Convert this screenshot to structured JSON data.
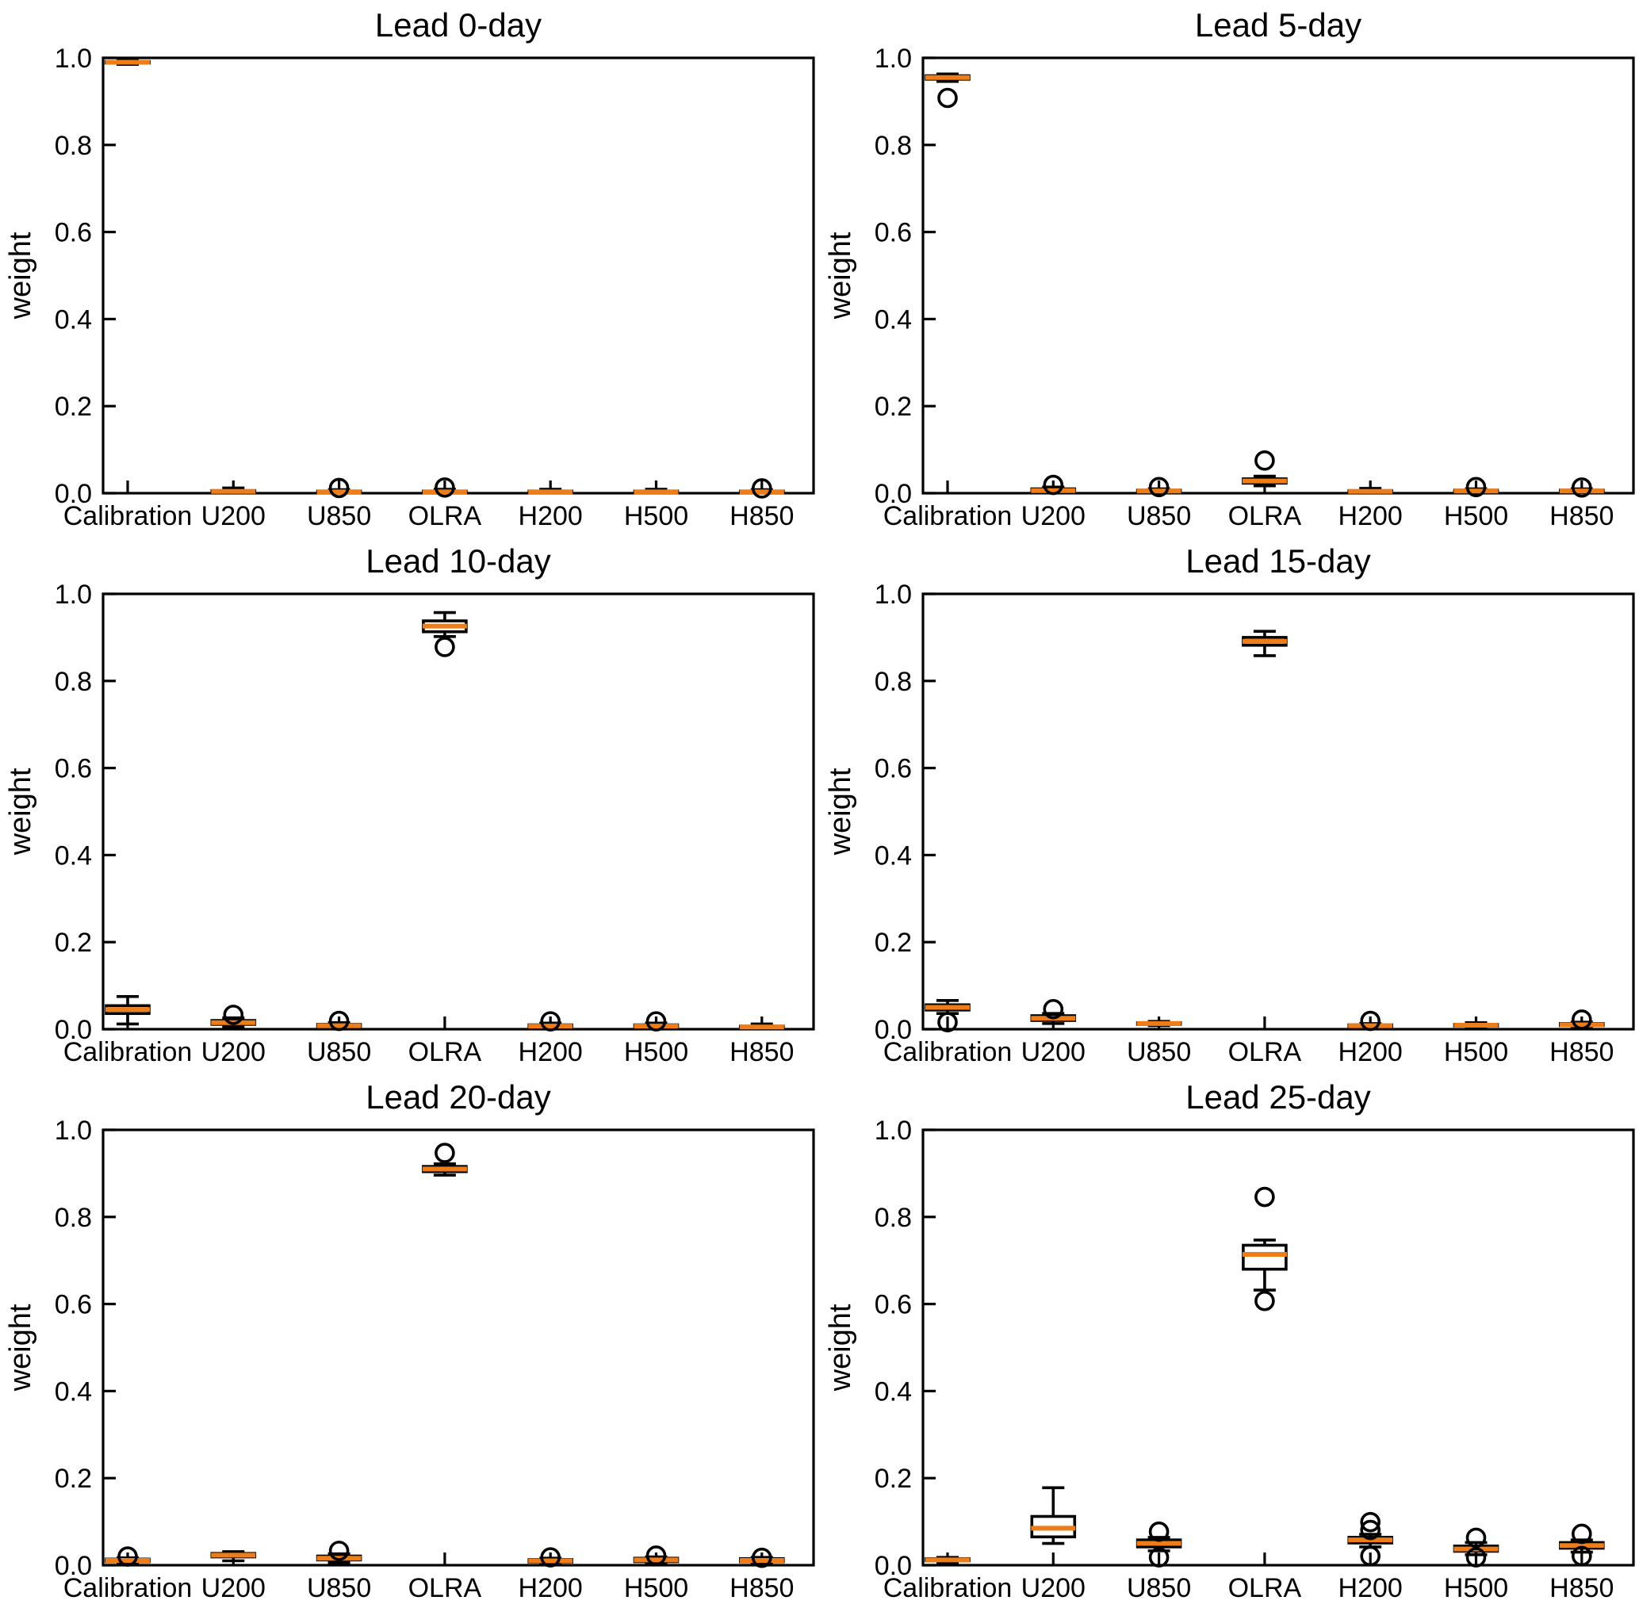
{
  "figure": {
    "background": "#ffffff",
    "axis_color": "#000000",
    "median_color": "#ee7d18",
    "ylabel": "weight",
    "categories": [
      "Calibration",
      "U200",
      "U850",
      "OLRA",
      "H200",
      "H500",
      "H850"
    ],
    "ytick_labels": [
      "0.0",
      "0.2",
      "0.4",
      "0.6",
      "0.8",
      "1.0"
    ]
  },
  "chart_data": [
    {
      "type": "boxplot",
      "title": "Lead 0-day",
      "ylabel": "weight",
      "ylim": [
        0.0,
        1.0
      ],
      "yticks": [
        0.0,
        0.2,
        0.4,
        0.6,
        0.8,
        1.0
      ],
      "categories": [
        "Calibration",
        "U200",
        "U850",
        "OLRA",
        "H200",
        "H500",
        "H850"
      ],
      "boxes": [
        {
          "label": "Calibration",
          "whislo": 0.985,
          "q1": 0.988,
          "med": 0.99,
          "q3": 0.992,
          "whishi": 0.994,
          "fliers": []
        },
        {
          "label": "U200",
          "whislo": 0.001,
          "q1": 0.002,
          "med": 0.004,
          "q3": 0.006,
          "whishi": 0.012,
          "fliers": []
        },
        {
          "label": "U850",
          "whislo": 0.001,
          "q1": 0.002,
          "med": 0.003,
          "q3": 0.005,
          "whishi": 0.008,
          "fliers": [
            0.012
          ]
        },
        {
          "label": "OLRA",
          "whislo": 0.001,
          "q1": 0.002,
          "med": 0.003,
          "q3": 0.005,
          "whishi": 0.009,
          "fliers": [
            0.013
          ]
        },
        {
          "label": "H200",
          "whislo": 0.001,
          "q1": 0.002,
          "med": 0.003,
          "q3": 0.005,
          "whishi": 0.009,
          "fliers": []
        },
        {
          "label": "H500",
          "whislo": 0.001,
          "q1": 0.002,
          "med": 0.003,
          "q3": 0.005,
          "whishi": 0.009,
          "fliers": []
        },
        {
          "label": "H850",
          "whislo": 0.001,
          "q1": 0.002,
          "med": 0.003,
          "q3": 0.005,
          "whishi": 0.008,
          "fliers": [
            0.011
          ]
        }
      ]
    },
    {
      "type": "boxplot",
      "title": "Lead 5-day",
      "ylabel": "weight",
      "ylim": [
        0.0,
        1.0
      ],
      "yticks": [
        0.0,
        0.2,
        0.4,
        0.6,
        0.8,
        1.0
      ],
      "categories": [
        "Calibration",
        "U200",
        "U850",
        "OLRA",
        "H200",
        "H500",
        "H850"
      ],
      "boxes": [
        {
          "label": "Calibration",
          "whislo": 0.946,
          "q1": 0.951,
          "med": 0.955,
          "q3": 0.959,
          "whishi": 0.963,
          "fliers": [
            0.908
          ]
        },
        {
          "label": "U200",
          "whislo": 0.001,
          "q1": 0.004,
          "med": 0.006,
          "q3": 0.01,
          "whishi": 0.014,
          "fliers": [
            0.019
          ]
        },
        {
          "label": "U850",
          "whislo": 0.001,
          "q1": 0.003,
          "med": 0.005,
          "q3": 0.007,
          "whishi": 0.01,
          "fliers": [
            0.014
          ]
        },
        {
          "label": "OLRA",
          "whislo": 0.017,
          "q1": 0.023,
          "med": 0.028,
          "q3": 0.033,
          "whishi": 0.039,
          "fliers": [
            0.075
          ]
        },
        {
          "label": "H200",
          "whislo": 0.001,
          "q1": 0.002,
          "med": 0.004,
          "q3": 0.006,
          "whishi": 0.011,
          "fliers": []
        },
        {
          "label": "H500",
          "whislo": 0.001,
          "q1": 0.003,
          "med": 0.005,
          "q3": 0.007,
          "whishi": 0.01,
          "fliers": [
            0.014
          ]
        },
        {
          "label": "H850",
          "whislo": 0.001,
          "q1": 0.003,
          "med": 0.005,
          "q3": 0.007,
          "whishi": 0.01,
          "fliers": [
            0.013
          ]
        }
      ]
    },
    {
      "type": "boxplot",
      "title": "Lead 10-day",
      "ylabel": "weight",
      "ylim": [
        0.0,
        1.0
      ],
      "yticks": [
        0.0,
        0.2,
        0.4,
        0.6,
        0.8,
        1.0
      ],
      "categories": [
        "Calibration",
        "U200",
        "U850",
        "OLRA",
        "H200",
        "H500",
        "H850"
      ],
      "boxes": [
        {
          "label": "Calibration",
          "whislo": 0.012,
          "q1": 0.036,
          "med": 0.045,
          "q3": 0.054,
          "whishi": 0.075,
          "fliers": []
        },
        {
          "label": "U200",
          "whislo": 0.006,
          "q1": 0.011,
          "med": 0.015,
          "q3": 0.02,
          "whishi": 0.026,
          "fliers": [
            0.033
          ]
        },
        {
          "label": "U850",
          "whislo": 0.003,
          "q1": 0.006,
          "med": 0.008,
          "q3": 0.011,
          "whishi": 0.015,
          "fliers": [
            0.019
          ]
        },
        {
          "label": "OLRA",
          "whislo": 0.902,
          "q1": 0.913,
          "med": 0.926,
          "q3": 0.938,
          "whishi": 0.957,
          "fliers": [
            0.878
          ]
        },
        {
          "label": "H200",
          "whislo": 0.002,
          "q1": 0.005,
          "med": 0.007,
          "q3": 0.01,
          "whishi": 0.014,
          "fliers": [
            0.018
          ]
        },
        {
          "label": "H500",
          "whislo": 0.002,
          "q1": 0.005,
          "med": 0.007,
          "q3": 0.01,
          "whishi": 0.014,
          "fliers": [
            0.018
          ]
        },
        {
          "label": "H850",
          "whislo": 0.001,
          "q1": 0.003,
          "med": 0.005,
          "q3": 0.007,
          "whishi": 0.012,
          "fliers": []
        }
      ]
    },
    {
      "type": "boxplot",
      "title": "Lead 15-day",
      "ylabel": "weight",
      "ylim": [
        0.0,
        1.0
      ],
      "yticks": [
        0.0,
        0.2,
        0.4,
        0.6,
        0.8,
        1.0
      ],
      "categories": [
        "Calibration",
        "U200",
        "U850",
        "OLRA",
        "H200",
        "H500",
        "H850"
      ],
      "boxes": [
        {
          "label": "Calibration",
          "whislo": 0.036,
          "q1": 0.044,
          "med": 0.05,
          "q3": 0.056,
          "whishi": 0.066,
          "fliers": [
            0.016
          ]
        },
        {
          "label": "U200",
          "whislo": 0.013,
          "q1": 0.02,
          "med": 0.025,
          "q3": 0.031,
          "whishi": 0.036,
          "fliers": [
            0.046
          ]
        },
        {
          "label": "U850",
          "whislo": 0.008,
          "q1": 0.011,
          "med": 0.013,
          "q3": 0.015,
          "whishi": 0.018,
          "fliers": []
        },
        {
          "label": "OLRA",
          "whislo": 0.858,
          "q1": 0.882,
          "med": 0.891,
          "q3": 0.9,
          "whishi": 0.914,
          "fliers": []
        },
        {
          "label": "H200",
          "whislo": 0.003,
          "q1": 0.006,
          "med": 0.008,
          "q3": 0.01,
          "whishi": 0.013,
          "fliers": [
            0.019
          ]
        },
        {
          "label": "H500",
          "whislo": 0.004,
          "q1": 0.007,
          "med": 0.009,
          "q3": 0.011,
          "whishi": 0.015,
          "fliers": []
        },
        {
          "label": "H850",
          "whislo": 0.004,
          "q1": 0.008,
          "med": 0.01,
          "q3": 0.013,
          "whishi": 0.016,
          "fliers": [
            0.022
          ]
        }
      ]
    },
    {
      "type": "boxplot",
      "title": "Lead 20-day",
      "ylabel": "weight",
      "ylim": [
        0.0,
        1.0
      ],
      "yticks": [
        0.0,
        0.2,
        0.4,
        0.6,
        0.8,
        1.0
      ],
      "categories": [
        "Calibration",
        "U200",
        "U850",
        "OLRA",
        "H200",
        "H500",
        "H850"
      ],
      "boxes": [
        {
          "label": "Calibration",
          "whislo": 0.004,
          "q1": 0.008,
          "med": 0.011,
          "q3": 0.014,
          "whishi": 0.017,
          "fliers": [
            0.02
          ]
        },
        {
          "label": "U200",
          "whislo": 0.01,
          "q1": 0.019,
          "med": 0.023,
          "q3": 0.027,
          "whishi": 0.031,
          "fliers": []
        },
        {
          "label": "U850",
          "whislo": 0.006,
          "q1": 0.012,
          "med": 0.016,
          "q3": 0.021,
          "whishi": 0.026,
          "fliers": [
            0.033
          ]
        },
        {
          "label": "OLRA",
          "whislo": 0.896,
          "q1": 0.904,
          "med": 0.91,
          "q3": 0.916,
          "whishi": 0.922,
          "fliers": [
            0.947
          ]
        },
        {
          "label": "H200",
          "whislo": 0.003,
          "q1": 0.007,
          "med": 0.01,
          "q3": 0.013,
          "whishi": 0.016,
          "fliers": [
            0.018
          ]
        },
        {
          "label": "H500",
          "whislo": 0.004,
          "q1": 0.008,
          "med": 0.012,
          "q3": 0.016,
          "whishi": 0.019,
          "fliers": [
            0.022
          ]
        },
        {
          "label": "H850",
          "whislo": 0.004,
          "q1": 0.008,
          "med": 0.011,
          "q3": 0.015,
          "whishi": 0.018,
          "fliers": [
            0.017
          ]
        }
      ]
    },
    {
      "type": "boxplot",
      "title": "Lead 25-day",
      "ylabel": "weight",
      "ylim": [
        0.0,
        1.0
      ],
      "yticks": [
        0.0,
        0.2,
        0.4,
        0.6,
        0.8,
        1.0
      ],
      "categories": [
        "Calibration",
        "U200",
        "U850",
        "OLRA",
        "H200",
        "H500",
        "H850"
      ],
      "boxes": [
        {
          "label": "Calibration",
          "whislo": 0.006,
          "q1": 0.01,
          "med": 0.012,
          "q3": 0.015,
          "whishi": 0.018,
          "fliers": []
        },
        {
          "label": "U200",
          "whislo": 0.05,
          "q1": 0.065,
          "med": 0.085,
          "q3": 0.112,
          "whishi": 0.178,
          "fliers": []
        },
        {
          "label": "U850",
          "whislo": 0.033,
          "q1": 0.042,
          "med": 0.05,
          "q3": 0.058,
          "whishi": 0.064,
          "fliers": [
            0.077,
            0.018
          ]
        },
        {
          "label": "OLRA",
          "whislo": 0.632,
          "q1": 0.68,
          "med": 0.714,
          "q3": 0.735,
          "whishi": 0.747,
          "fliers": [
            0.846,
            0.607
          ]
        },
        {
          "label": "H200",
          "whislo": 0.042,
          "q1": 0.051,
          "med": 0.058,
          "q3": 0.064,
          "whishi": 0.071,
          "fliers": [
            0.099,
            0.081,
            0.021
          ]
        },
        {
          "label": "H500",
          "whislo": 0.024,
          "q1": 0.032,
          "med": 0.037,
          "q3": 0.044,
          "whishi": 0.052,
          "fliers": [
            0.063,
            0.018
          ]
        },
        {
          "label": "H850",
          "whislo": 0.03,
          "q1": 0.039,
          "med": 0.045,
          "q3": 0.052,
          "whishi": 0.058,
          "fliers": [
            0.072,
            0.021
          ]
        }
      ]
    }
  ]
}
